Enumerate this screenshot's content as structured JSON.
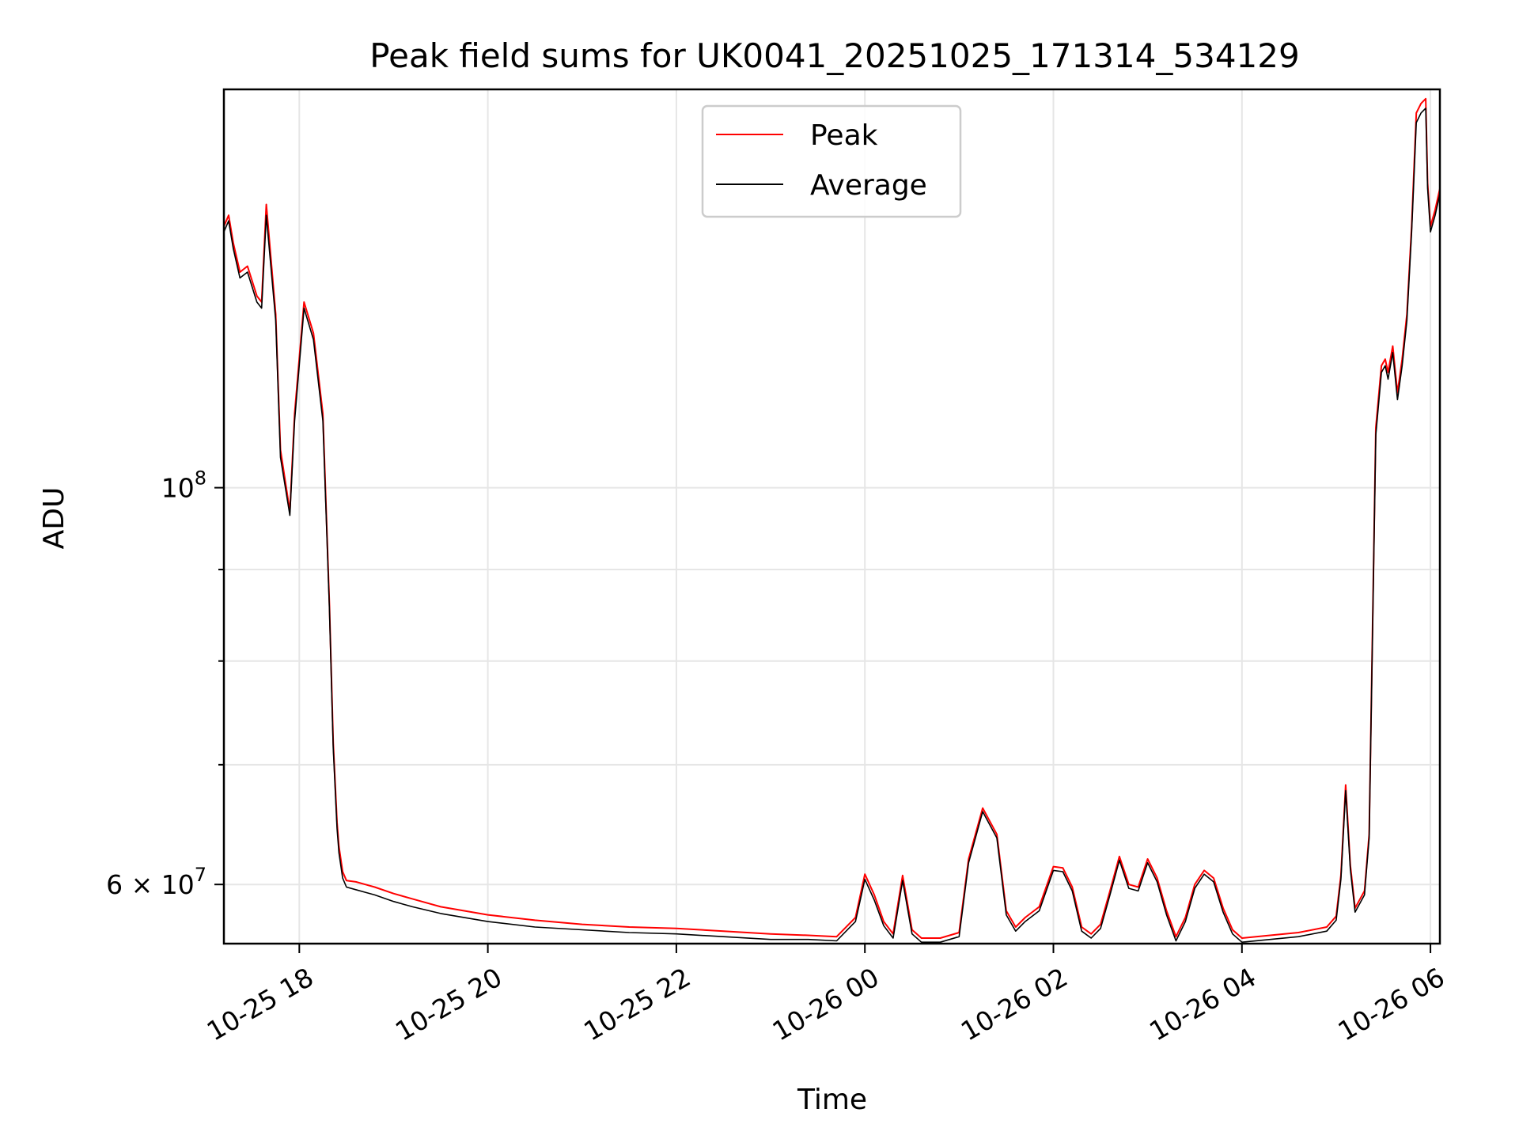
{
  "chart_data": {
    "type": "line",
    "title": "Peak field sums for UK0041_20251025_171314_534129",
    "xlabel": "Time",
    "ylabel": "ADU",
    "y_scale": "log",
    "xlim_hours": [
      -0.8,
      12.1
    ],
    "ylim": [
      55600000,
      167000000
    ],
    "grid": true,
    "legend_position": "upper center",
    "x_ticks": [
      {
        "label": "10-25 18",
        "hour": 0
      },
      {
        "label": "10-25 20",
        "hour": 2
      },
      {
        "label": "10-25 22",
        "hour": 4
      },
      {
        "label": "10-26 00",
        "hour": 6
      },
      {
        "label": "10-26 02",
        "hour": 8
      },
      {
        "label": "10-26 04",
        "hour": 10
      },
      {
        "label": "10-26 06",
        "hour": 12
      }
    ],
    "y_major_ticks": [
      {
        "value": 60000000,
        "mantissa": "6",
        "base": "10",
        "exp": "7",
        "times": "×"
      },
      {
        "value": 100000000,
        "mantissa": "",
        "base": "10",
        "exp": "8",
        "times": ""
      }
    ],
    "y_minor_ticks": [
      70000000,
      80000000,
      90000000
    ],
    "x_unit": "hours since 10-25 18:00",
    "series": [
      {
        "name": "Peak",
        "color": "#ff0000",
        "x": [
          -0.8,
          -0.75,
          -0.7,
          -0.63,
          -0.55,
          -0.45,
          -0.4,
          -0.35,
          -0.25,
          -0.2,
          -0.1,
          -0.05,
          0.05,
          0.15,
          0.25,
          0.32,
          0.36,
          0.4,
          0.42,
          0.46,
          0.5,
          0.6,
          0.7,
          0.8,
          1.0,
          1.2,
          1.5,
          2.0,
          2.5,
          3.0,
          3.5,
          4.0,
          4.5,
          5.0,
          5.4,
          5.7,
          5.9,
          6.0,
          6.1,
          6.2,
          6.3,
          6.4,
          6.5,
          6.6,
          6.8,
          7.0,
          7.1,
          7.25,
          7.4,
          7.5,
          7.6,
          7.7,
          7.85,
          8.0,
          8.1,
          8.2,
          8.3,
          8.4,
          8.5,
          8.6,
          8.7,
          8.8,
          8.9,
          9.0,
          9.1,
          9.2,
          9.3,
          9.4,
          9.5,
          9.6,
          9.7,
          9.8,
          9.9,
          10.0,
          10.3,
          10.6,
          10.9,
          11.0,
          11.05,
          11.1,
          11.15,
          11.2,
          11.3,
          11.35,
          11.38,
          11.42,
          11.48,
          11.52,
          11.55,
          11.6,
          11.65,
          11.7,
          11.75,
          11.8,
          11.85,
          11.9,
          11.95,
          11.97,
          12.0,
          12.05,
          12.1
        ],
        "values": [
          140000000,
          142000000,
          137000000,
          132000000,
          133000000,
          128000000,
          127000000,
          144000000,
          125000000,
          105000000,
          97000000,
          110000000,
          127000000,
          122000000,
          110000000,
          86000000,
          72000000,
          65000000,
          63000000,
          61000000,
          60300000,
          60200000,
          60000000,
          59800000,
          59300000,
          58900000,
          58300000,
          57700000,
          57300000,
          57000000,
          56800000,
          56700000,
          56500000,
          56300000,
          56200000,
          56100000,
          57500000,
          60800000,
          59200000,
          57200000,
          56300000,
          60700000,
          56600000,
          56000000,
          56000000,
          56400000,
          62000000,
          66200000,
          64000000,
          58000000,
          56800000,
          57500000,
          58300000,
          61400000,
          61300000,
          59800000,
          56800000,
          56300000,
          57000000,
          59500000,
          62200000,
          60000000,
          59800000,
          62000000,
          60500000,
          58000000,
          56100000,
          57500000,
          60000000,
          61100000,
          60500000,
          58200000,
          56600000,
          56000000,
          56200000,
          56400000,
          56800000,
          57600000,
          60700000,
          68200000,
          61500000,
          58200000,
          59500000,
          64000000,
          80000000,
          108000000,
          117000000,
          118000000,
          116000000,
          120000000,
          113000000,
          118000000,
          125000000,
          140000000,
          162000000,
          164000000,
          165000000,
          148000000,
          140000000,
          143000000,
          147000000
        ]
      },
      {
        "name": "Average",
        "color": "#000000",
        "x": [
          -0.8,
          -0.75,
          -0.7,
          -0.63,
          -0.55,
          -0.45,
          -0.4,
          -0.35,
          -0.25,
          -0.2,
          -0.1,
          -0.05,
          0.05,
          0.15,
          0.25,
          0.32,
          0.36,
          0.4,
          0.42,
          0.46,
          0.5,
          0.6,
          0.7,
          0.8,
          1.0,
          1.2,
          1.5,
          2.0,
          2.5,
          3.0,
          3.5,
          4.0,
          4.5,
          5.0,
          5.4,
          5.7,
          5.9,
          6.0,
          6.1,
          6.2,
          6.3,
          6.4,
          6.5,
          6.6,
          6.8,
          7.0,
          7.1,
          7.25,
          7.4,
          7.5,
          7.6,
          7.7,
          7.85,
          8.0,
          8.1,
          8.2,
          8.3,
          8.4,
          8.5,
          8.6,
          8.7,
          8.8,
          8.9,
          9.0,
          9.1,
          9.2,
          9.3,
          9.4,
          9.5,
          9.6,
          9.7,
          9.8,
          9.9,
          10.0,
          10.3,
          10.6,
          10.9,
          11.0,
          11.05,
          11.1,
          11.15,
          11.2,
          11.3,
          11.35,
          11.38,
          11.42,
          11.48,
          11.52,
          11.55,
          11.6,
          11.65,
          11.7,
          11.75,
          11.8,
          11.85,
          11.9,
          11.95,
          11.97,
          12.0,
          12.05,
          12.1
        ],
        "values": [
          139000000,
          141000000,
          136000000,
          131000000,
          132000000,
          127000000,
          126000000,
          142000000,
          124000000,
          104000000,
          96500000,
          109000000,
          126000000,
          121000000,
          109000000,
          85500000,
          71500000,
          64500000,
          62500000,
          60500000,
          59800000,
          59600000,
          59400000,
          59200000,
          58700000,
          58300000,
          57800000,
          57200000,
          56800000,
          56600000,
          56400000,
          56300000,
          56100000,
          55900000,
          55900000,
          55800000,
          57200000,
          60400000,
          58800000,
          56900000,
          56000000,
          60300000,
          56300000,
          55700000,
          55700000,
          56100000,
          61700000,
          65900000,
          63700000,
          57700000,
          56500000,
          57200000,
          58000000,
          61100000,
          61000000,
          59500000,
          56500000,
          56000000,
          56700000,
          59200000,
          61900000,
          59700000,
          59500000,
          61700000,
          60200000,
          57700000,
          55800000,
          57200000,
          59700000,
          60800000,
          60200000,
          57900000,
          56300000,
          55700000,
          55900000,
          56100000,
          56500000,
          57300000,
          60400000,
          67700000,
          61200000,
          57900000,
          59200000,
          63700000,
          79500000,
          107000000,
          116000000,
          117000000,
          115000000,
          119000000,
          112000000,
          117000000,
          124000000,
          139000000,
          160000000,
          162000000,
          163000000,
          147000000,
          139000000,
          142000000,
          146000000
        ]
      }
    ]
  }
}
